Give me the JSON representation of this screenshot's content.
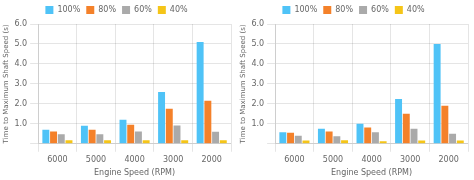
{
  "chart_data": [
    {
      "type": "bar",
      "categories": [
        "6000",
        "5000",
        "4000",
        "3000",
        "2000"
      ],
      "series": [
        {
          "name": "100%",
          "color": "#4FC3F7",
          "values": [
            0.7,
            0.9,
            1.2,
            2.6,
            5.1
          ]
        },
        {
          "name": "80%",
          "color": "#F4812A",
          "values": [
            0.62,
            0.7,
            0.95,
            1.75,
            2.15
          ]
        },
        {
          "name": "60%",
          "color": "#AAAAAA",
          "values": [
            0.48,
            0.48,
            0.62,
            0.92,
            0.6
          ]
        },
        {
          "name": "40%",
          "color": "#F5C518",
          "values": [
            0.18,
            0.18,
            0.18,
            0.18,
            0.18
          ]
        }
      ],
      "xlabel": "Engine Speed (RPM)",
      "ylabel": "Time to Maximum Shaft Speed (s)",
      "ylim": [
        0,
        6.0
      ],
      "yticks": [
        {
          "value": 0.0,
          "label": ""
        },
        {
          "value": 1.0,
          "label": "1.0"
        },
        {
          "value": 2.0,
          "label": "2.0"
        },
        {
          "value": 3.0,
          "label": "3.0"
        },
        {
          "value": 4.0,
          "label": "4.0"
        },
        {
          "value": 5.0,
          "label": "5.0"
        },
        {
          "value": 6.0,
          "label": "6.0"
        }
      ],
      "grid": true,
      "legend": "top"
    },
    {
      "type": "bar",
      "categories": [
        "6000",
        "5000",
        "4000",
        "3000",
        "2000"
      ],
      "series": [
        {
          "name": "100%",
          "color": "#4FC3F7",
          "values": [
            0.58,
            0.75,
            1.0,
            2.25,
            5.0
          ]
        },
        {
          "name": "80%",
          "color": "#F4812A",
          "values": [
            0.55,
            0.62,
            0.82,
            1.5,
            1.9
          ]
        },
        {
          "name": "60%",
          "color": "#AAAAAA",
          "values": [
            0.4,
            0.38,
            0.58,
            0.75,
            0.5
          ]
        },
        {
          "name": "40%",
          "color": "#F5C518",
          "values": [
            0.16,
            0.18,
            0.13,
            0.17,
            0.17
          ]
        }
      ],
      "xlabel": "Engine Speed (RPM)",
      "ylabel": "Time to Maximum Shaft Speed (s)",
      "ylim": [
        0,
        6.0
      ],
      "yticks": [
        {
          "value": 0.0,
          "label": ""
        },
        {
          "value": 1.0,
          "label": "1.0"
        },
        {
          "value": 2.0,
          "label": "2.0"
        },
        {
          "value": 3.0,
          "label": "3.0"
        },
        {
          "value": 4.0,
          "label": "4.0"
        },
        {
          "value": 5.0,
          "label": "5.0"
        },
        {
          "value": 6.0,
          "label": "6.0"
        }
      ],
      "grid": true,
      "legend": "top"
    }
  ]
}
